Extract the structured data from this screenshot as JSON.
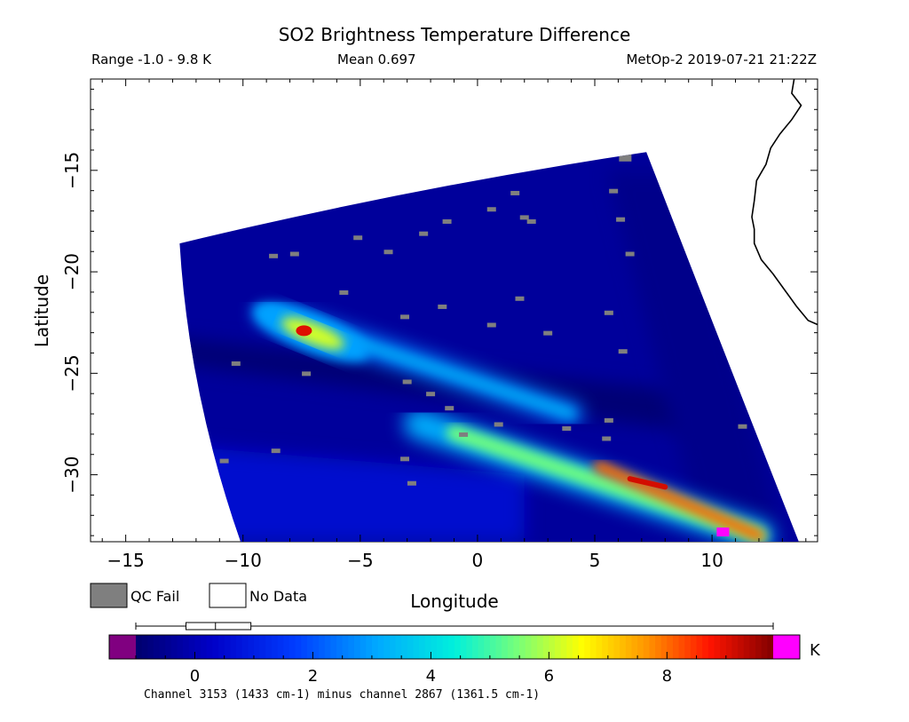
{
  "header": {
    "title": "SO2 Brightness Temperature Difference",
    "range_text": "Range -1.0 - 9.8 K",
    "mean_text": "Mean 0.697",
    "source_text": "MetOp-2 2019-07-21 21:22Z"
  },
  "legend": {
    "qc_fail_label": "QC Fail",
    "no_data_label": "No Data",
    "qc_fail_color": "#7f7f7f",
    "no_data_color": "#ffffff"
  },
  "colorbar": {
    "unit": "K",
    "tick_labels": [
      "0",
      "2",
      "4",
      "6",
      "8"
    ],
    "tick_values": [
      0,
      2,
      4,
      6,
      8
    ],
    "min": -1.0,
    "max": 9.8,
    "underflow_color": "#800080",
    "overflow_color": "#ff00ff",
    "caption": "Channel 3153 (1433 cm-1) minus channel 2867 (1361.5 cm-1)",
    "boxplot": {
      "whisker_low": -1.0,
      "q1": -0.15,
      "median": 0.35,
      "q3": 0.95,
      "whisker_high": 9.8
    }
  },
  "chart_data": {
    "type": "heatmap",
    "title": "SO2 Brightness Temperature Difference",
    "xlabel": "Longitude",
    "ylabel": "Latitude",
    "xlim": [
      -16.5,
      14.5
    ],
    "ylim": [
      -33.3,
      -10.5
    ],
    "x_ticks": [
      -15,
      -10,
      -5,
      0,
      5,
      10
    ],
    "y_ticks": [
      -15,
      -20,
      -25,
      -30
    ],
    "x_tick_labels": [
      "−15",
      "−10",
      "−5",
      "0",
      "5",
      "10"
    ],
    "y_tick_labels": [
      "−15",
      "−20",
      "−25",
      "−30"
    ],
    "value_unit": "K",
    "value_range": [
      -1.0,
      9.8
    ],
    "mean": 0.697,
    "swath_corners": {
      "top_left": [
        -12.7,
        -18.6
      ],
      "top_right": [
        7.2,
        -14.1
      ],
      "bottom_right": [
        13.7,
        -33.3
      ],
      "bottom_left": [
        -10.1,
        -33.3
      ]
    },
    "plume_features": [
      {
        "name": "western blob",
        "lon": -7.4,
        "lat": -22.9,
        "max_value": 9.0
      },
      {
        "name": "main plume band",
        "from": [
          -2.5,
          -27.5
        ],
        "to": [
          12.0,
          -33.0
        ],
        "max_value": 9.8
      },
      {
        "name": "northwest arm",
        "from": [
          -9.0,
          -22.0
        ],
        "to": [
          4.0,
          -27.0
        ],
        "max_value": 4.5
      }
    ],
    "grid": false
  }
}
